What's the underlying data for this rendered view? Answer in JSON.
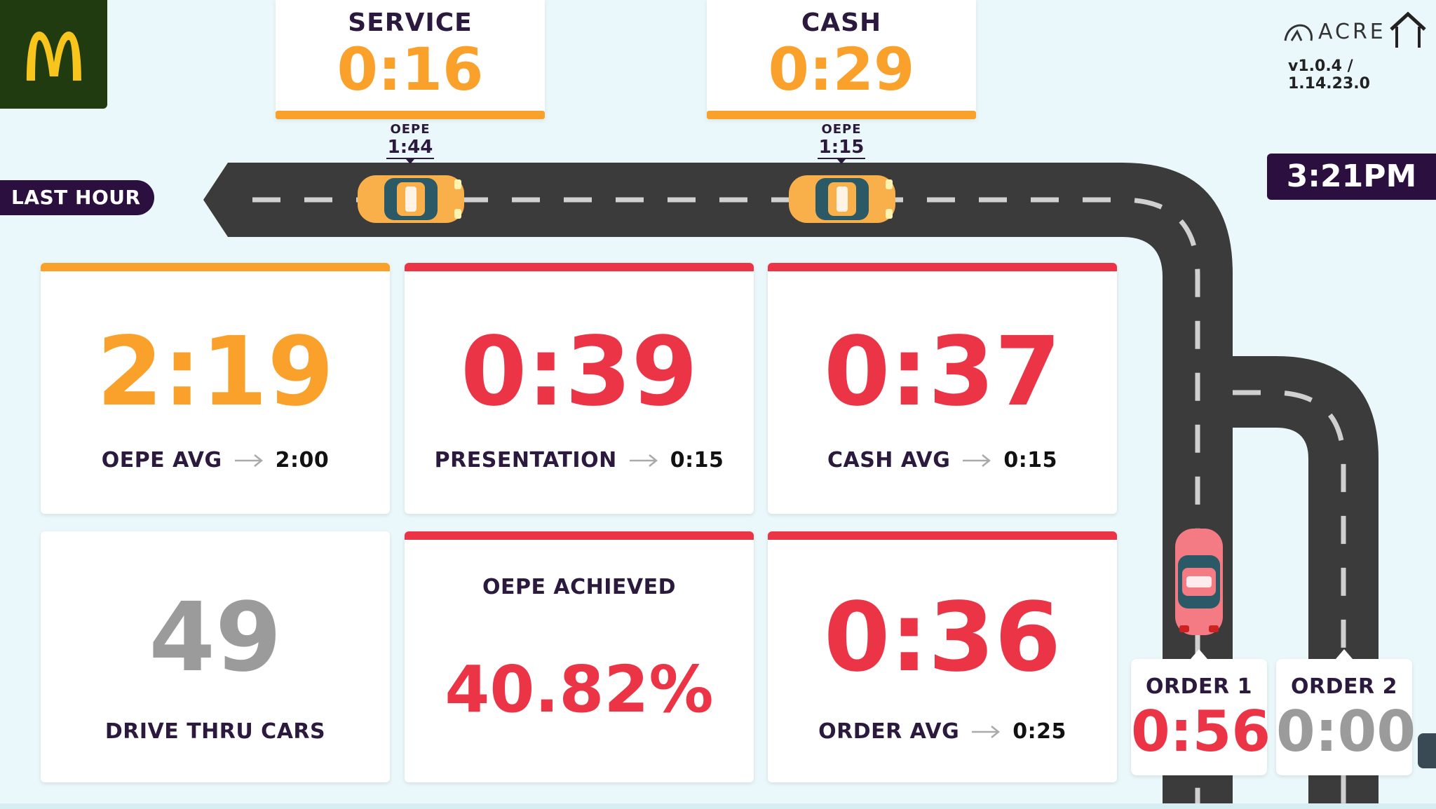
{
  "brand": {
    "name": "ACRE",
    "version": "v1.0.4 / 1.14.23.0"
  },
  "colors": {
    "accent_orange": "#f9a12a",
    "accent_red": "#ec3447",
    "dark_purple": "#2a0f3f",
    "grey": "#9b9b9b",
    "road": "#3b3b3b"
  },
  "top_stats": [
    {
      "label": "SERVICE",
      "value": "0:16",
      "oepe_label": "OEPE",
      "oepe_value": "1:44"
    },
    {
      "label": "CASH",
      "value": "0:29",
      "oepe_label": "OEPE",
      "oepe_value": "1:15"
    }
  ],
  "last_hour_label": "LAST HOUR",
  "clock": "3:21PM",
  "kpis": [
    {
      "value": "2:19",
      "label": "OEPE AVG",
      "target": "2:00",
      "status": "orange"
    },
    {
      "value": "0:39",
      "label": "PRESENTATION",
      "target": "0:15",
      "status": "red"
    },
    {
      "value": "0:37",
      "label": "CASH AVG",
      "target": "0:15",
      "status": "red"
    },
    {
      "value": "49",
      "label": "DRIVE THRU CARS",
      "status": "grey"
    },
    {
      "value": "40.82%",
      "label": "OEPE ACHIEVED",
      "status": "red"
    },
    {
      "value": "0:36",
      "label": "ORDER AVG",
      "target": "0:25",
      "status": "red"
    }
  ],
  "orders": [
    {
      "label": "ORDER 1",
      "value": "0:56",
      "status": "red"
    },
    {
      "label": "ORDER 2",
      "value": "0:00",
      "status": "grey"
    }
  ],
  "icons": {
    "logo": "mcdonalds-logo",
    "home": "home-icon",
    "arrow": "arrow-right-icon",
    "car": "car-icon"
  }
}
